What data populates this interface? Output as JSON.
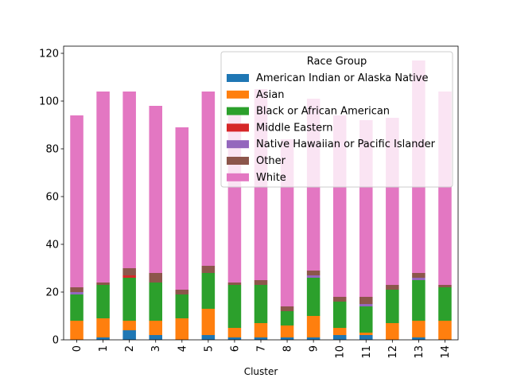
{
  "chart_data": {
    "type": "bar",
    "stacked": true,
    "title": "",
    "xlabel": "Cluster",
    "ylabel": "",
    "ylim": [
      0,
      123
    ],
    "yticks": [
      0,
      20,
      40,
      60,
      80,
      100,
      120
    ],
    "categories": [
      "0",
      "1",
      "2",
      "3",
      "4",
      "5",
      "6",
      "7",
      "8",
      "9",
      "10",
      "11",
      "12",
      "13",
      "14"
    ],
    "legend_title": "Race Group",
    "legend_location": "upper right",
    "series": [
      {
        "name": "American Indian or Alaska Native",
        "color": "#1f77b4",
        "values": [
          0,
          1,
          4,
          2,
          0,
          2,
          1,
          1,
          1,
          1,
          2,
          2,
          0,
          1,
          0
        ]
      },
      {
        "name": "Asian",
        "color": "#ff7f0e",
        "values": [
          8,
          8,
          4,
          6,
          9,
          11,
          4,
          6,
          5,
          9,
          3,
          1,
          7,
          7,
          8
        ]
      },
      {
        "name": "Black or African American",
        "color": "#2ca02c",
        "values": [
          11,
          14,
          18,
          16,
          10,
          15,
          18,
          16,
          6,
          16,
          11,
          11,
          14,
          17,
          14
        ]
      },
      {
        "name": "Middle Eastern",
        "color": "#d62728",
        "values": [
          0,
          0,
          1,
          0,
          0,
          0,
          0,
          0,
          0,
          0,
          0,
          0,
          0,
          0,
          0
        ]
      },
      {
        "name": "Native Hawaiian or Pacific Islander",
        "color": "#9467bd",
        "values": [
          1,
          0,
          0,
          0,
          0,
          0,
          0,
          0,
          0,
          1,
          0,
          1,
          0,
          1,
          0
        ]
      },
      {
        "name": "Other",
        "color": "#8c564b",
        "values": [
          2,
          1,
          3,
          4,
          2,
          3,
          1,
          2,
          2,
          2,
          2,
          3,
          2,
          2,
          1
        ]
      },
      {
        "name": "White",
        "color": "#e377c2",
        "values": [
          72,
          80,
          74,
          70,
          68,
          73,
          73,
          80,
          70,
          72,
          76,
          74,
          70,
          89,
          81
        ]
      }
    ]
  }
}
